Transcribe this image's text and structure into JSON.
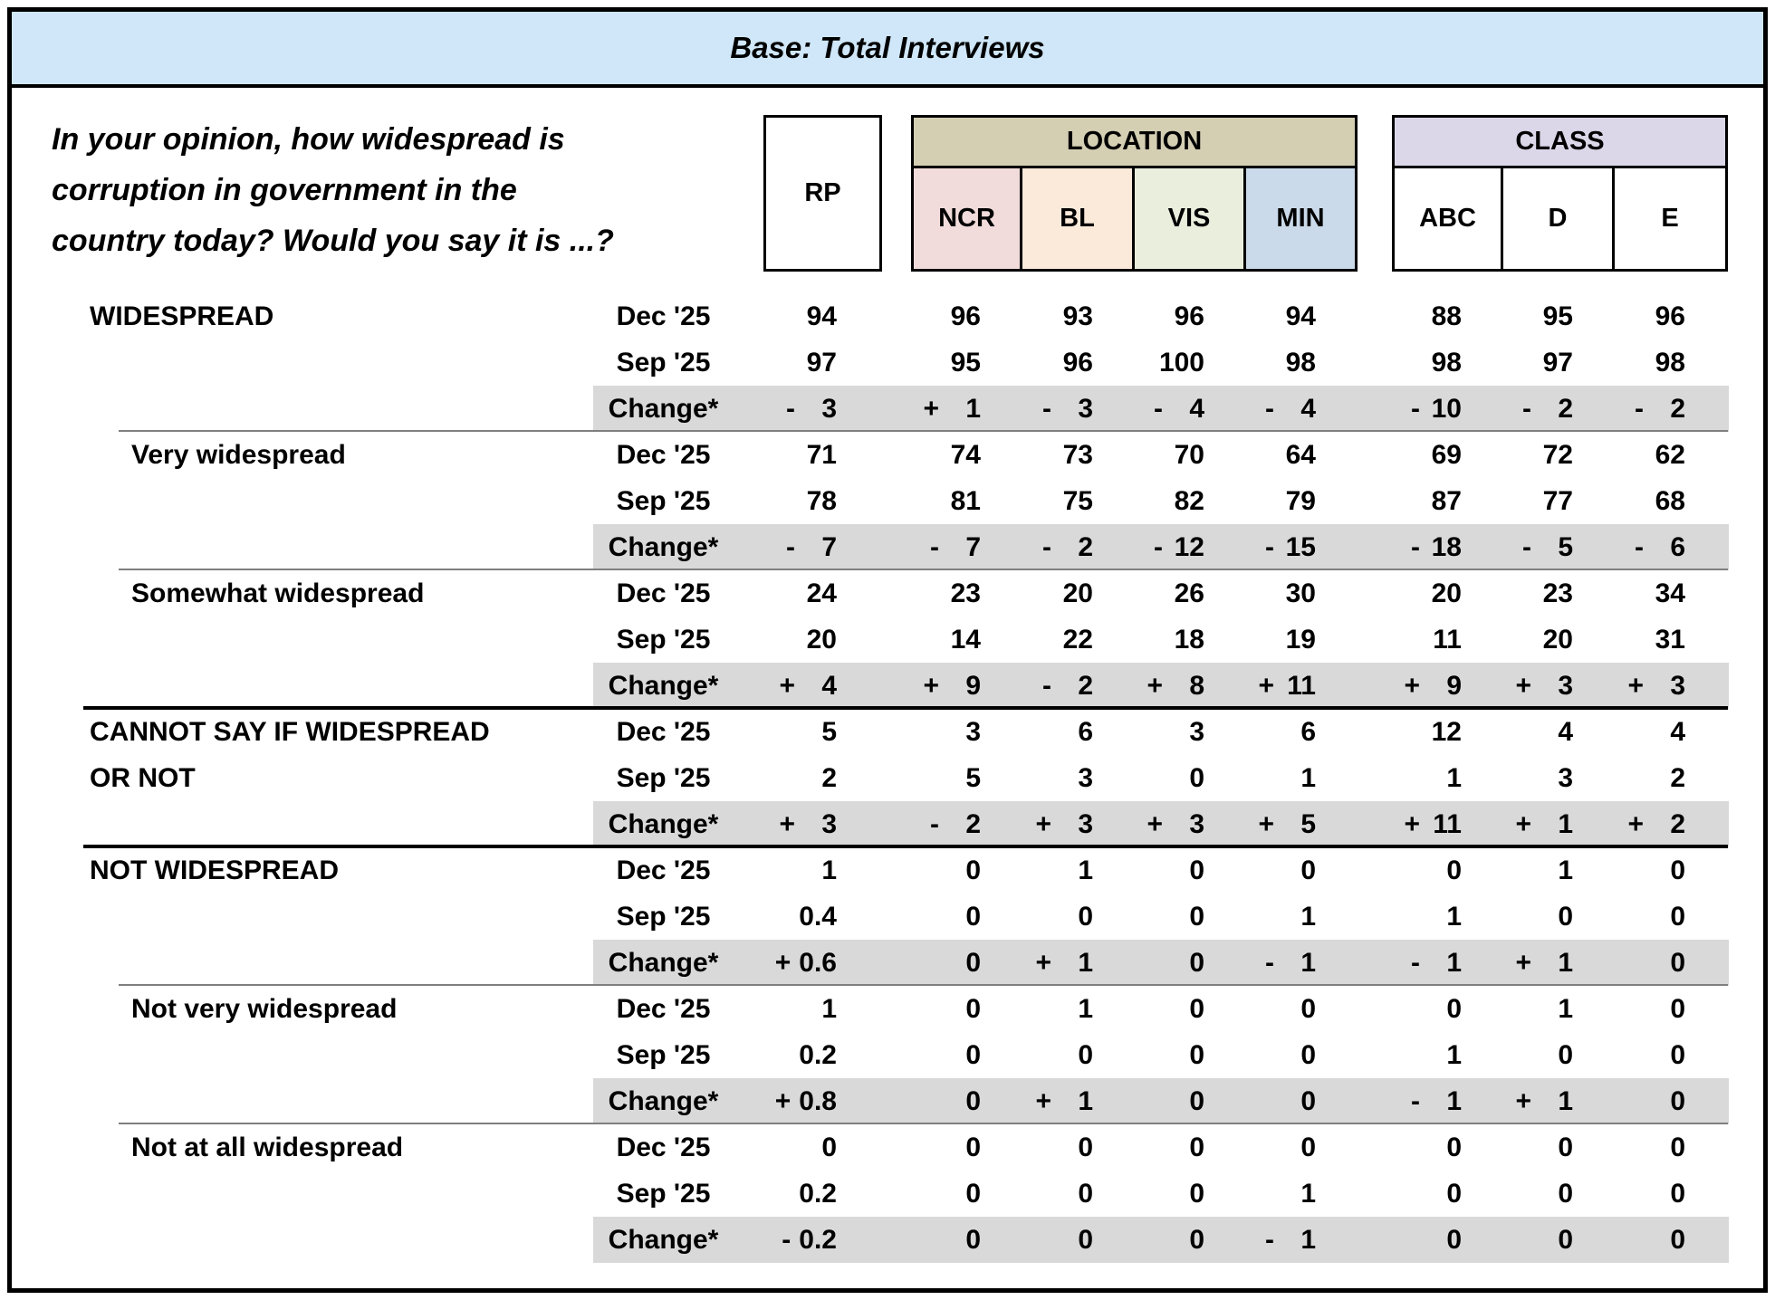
{
  "title_bar": {
    "text": "Base: Total Interviews"
  },
  "question": {
    "lines": [
      "In your opinion, how widespread is",
      "corruption in government in the",
      "country today? Would you say it is ...?"
    ]
  },
  "columns": {
    "rp": "RP",
    "groups": [
      {
        "label": "LOCATION",
        "band_bg": "#d4cfb3",
        "cols": [
          {
            "label": "NCR",
            "bg": "#f2dcdb"
          },
          {
            "label": "BL",
            "bg": "#fbe9da"
          },
          {
            "label": "VIS",
            "bg": "#e9eedd"
          },
          {
            "label": "MIN",
            "bg": "#cadaea"
          }
        ]
      },
      {
        "label": "CLASS",
        "band_bg": "#dbd6e8",
        "cols": [
          {
            "label": "ABC",
            "bg": "#ffffff"
          },
          {
            "label": "D",
            "bg": "#ffffff"
          },
          {
            "label": "E",
            "bg": "#ffffff"
          }
        ]
      }
    ]
  },
  "periods": [
    "Dec '25",
    "Sep '25",
    "Change*"
  ],
  "col_keys": [
    "rp",
    "ncr",
    "bl",
    "vis",
    "min",
    "abc",
    "d",
    "e"
  ],
  "table": {
    "blocks": [
      {
        "label": "WIDESPREAD",
        "label2": "",
        "level": "main",
        "dec": [
          "94",
          "96",
          "93",
          "96",
          "94",
          "88",
          "95",
          "96"
        ],
        "sep": [
          "97",
          "95",
          "96",
          "100",
          "98",
          "98",
          "97",
          "98"
        ],
        "change": [
          "- 3",
          "+ 1",
          "- 3",
          "- 4",
          "- 4",
          "-10",
          "- 2",
          "- 2"
        ]
      },
      {
        "label": "Very widespread",
        "label2": "",
        "level": "sub",
        "dec": [
          "71",
          "74",
          "73",
          "70",
          "64",
          "69",
          "72",
          "62"
        ],
        "sep": [
          "78",
          "81",
          "75",
          "82",
          "79",
          "87",
          "77",
          "68"
        ],
        "change": [
          "- 7",
          "- 7",
          "- 2",
          "-12",
          "-15",
          "-18",
          "- 5",
          "- 6"
        ]
      },
      {
        "label": "Somewhat widespread",
        "label2": "",
        "level": "sub",
        "dec": [
          "24",
          "23",
          "20",
          "26",
          "30",
          "20",
          "23",
          "34"
        ],
        "sep": [
          "20",
          "14",
          "22",
          "18",
          "19",
          "11",
          "20",
          "31"
        ],
        "change": [
          "+ 4",
          "+ 9",
          "- 2",
          "+ 8",
          "+11",
          "+ 9",
          "+ 3",
          "+ 3"
        ]
      },
      {
        "label": "CANNOT SAY IF WIDESPREAD",
        "label2": "OR NOT",
        "level": "main",
        "dec": [
          "5",
          "3",
          "6",
          "3",
          "6",
          "12",
          "4",
          "4"
        ],
        "sep": [
          "2",
          "5",
          "3",
          "0",
          "1",
          "1",
          "3",
          "2"
        ],
        "change": [
          "+ 3",
          "- 2",
          "+ 3",
          "+ 3",
          "+ 5",
          "+11",
          "+ 1",
          "+ 2"
        ]
      },
      {
        "label": "NOT WIDESPREAD",
        "label2": "",
        "level": "main",
        "dec": [
          "1",
          "0",
          "1",
          "0",
          "0",
          "0",
          "1",
          "0"
        ],
        "sep": [
          "0.4",
          "0",
          "0",
          "0",
          "1",
          "1",
          "0",
          "0"
        ],
        "change": [
          "+0.6",
          "0",
          "+ 1",
          "0",
          "- 1",
          "- 1",
          "+ 1",
          "0"
        ]
      },
      {
        "label": "Not very widespread",
        "label2": "",
        "level": "sub",
        "dec": [
          "1",
          "0",
          "1",
          "0",
          "0",
          "0",
          "1",
          "0"
        ],
        "sep": [
          "0.2",
          "0",
          "0",
          "0",
          "0",
          "1",
          "0",
          "0"
        ],
        "change": [
          "+0.8",
          "0",
          "+ 1",
          "0",
          "0",
          "- 1",
          "+ 1",
          "0"
        ]
      },
      {
        "label": "Not at all widespread",
        "label2": "",
        "level": "sub",
        "dec": [
          "0",
          "0",
          "0",
          "0",
          "0",
          "0",
          "0",
          "0"
        ],
        "sep": [
          "0.2",
          "0",
          "0",
          "0",
          "1",
          "0",
          "0",
          "0"
        ],
        "change": [
          "-0.2",
          "0",
          "0",
          "0",
          "- 1",
          "0",
          "0",
          "0"
        ]
      }
    ]
  },
  "colors": {
    "title_bar_bg": "#cfe7f8",
    "change_band_bg": "#d9d9d9",
    "thin_separator": "#7f7f7f",
    "thick_separator": "#000000",
    "border": "#000000"
  }
}
